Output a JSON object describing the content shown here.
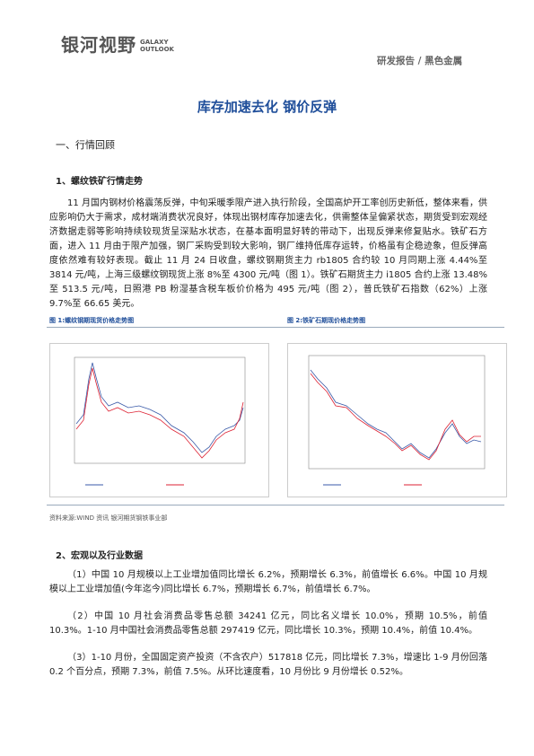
{
  "header": {
    "logo": "银河视野",
    "logo_en_1": "GALAXY",
    "logo_en_2": "OUTLOOK",
    "category": "研发报告 / 黑色金属"
  },
  "title": "库存加速去化 钢价反弹",
  "section_heading": "一、行情回顾",
  "sub1": {
    "heading": "1、螺纹铁矿行情走势",
    "paragraph": "11 月国内钢材价格震荡反弹，中旬采暖季限产进入执行阶段，全国高炉开工率创历史新低，整体来看，供应影响仍大于需求，成材端消费状况良好，体现出钢材库存加速去化，供需整体呈偏紧状态，期货受到宏观经济数据走弱等影响持续较现货呈深贴水状态，在基本面明显好转的带动下，出现反弹来修复贴水。铁矿石方面，进入 11 月由于限产加强，钢厂采购受到较大影响，钢厂维持低库存运转，价格虽有企稳迹象，但反弹高度依然难有较好表现。截止 11 月 24 日收盘，螺纹钢期货主力 rb1805 合约较 10 月同期上涨 4.44%至 3814 元/吨，上海三级螺纹钢现货上涨 8%至 4300 元/吨（图 1）。铁矿石期货主力 i1805 合约上涨 13.48%至 513.5 元/吨，日照港 PB 粉湿基含税车板价价格为 495 元/吨（图 2），普氏铁矿石指数（62%）上涨 9.7%至 66.65 美元。"
  },
  "figures": [
    {
      "caption": "图 1:螺纹钢期现货价格走势图"
    },
    {
      "caption": "图 2:铁矿石期现价格走势图"
    }
  ],
  "source": "资料来源:WIND 资讯   银河期货钢铁事业部",
  "sub2": {
    "heading": "2、宏观以及行业数据",
    "paragraphs": [
      "（1）中国 10 月规模以上工业增加值同比增长 6.2%，预期增长 6.3%，前值增长 6.6%。中国 10 月规模以上工业增加值(今年迄今)同比增长 6.7%，预期增长 6.7%，前值增长 6.7%。",
      "（2）中国 10 月社会消费品零售总额 34241 亿元，同比名义增长 10.0%，预期 10.5%，前值 10.3%。1-10 月中国社会消费品零售总额 297419 亿元，同比增长 10.3%，预期 10.4%，前值 10.4%。",
      "（3）1-10 月份，全国固定资产投资（不含农户）517818 亿元，同比增长 7.3%，增速比 1-9 月份回落 0.2 个百分点，预期 7.3%，前值 7.5%。从环比速度看，10 月份比 9 月份增长 0.52%。"
    ]
  }
}
